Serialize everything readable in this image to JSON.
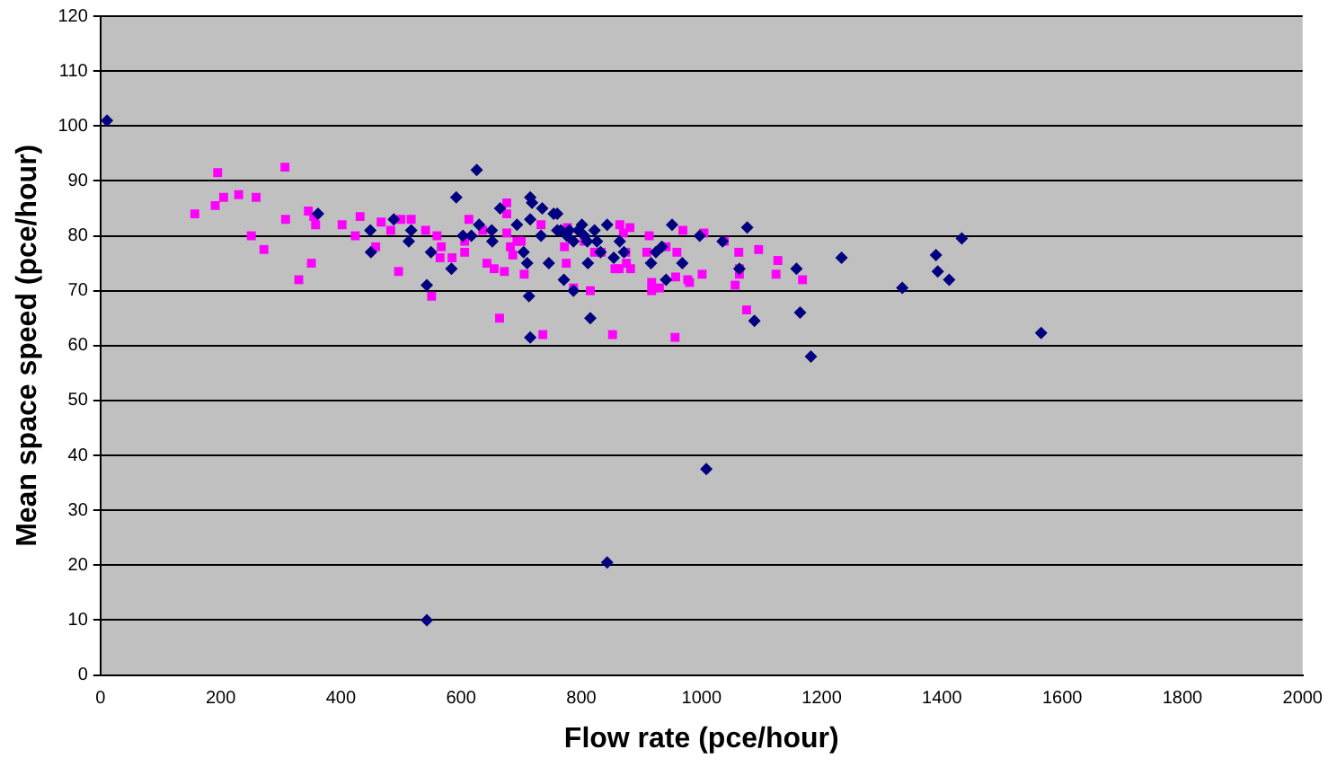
{
  "chart_data": {
    "type": "scatter",
    "xlabel": "Flow rate (pce/hour)",
    "ylabel": "Mean space speed (pce/hour)",
    "xlim": [
      0,
      2000
    ],
    "xticks": [
      0,
      200,
      400,
      600,
      800,
      1000,
      1200,
      1400,
      1600,
      1800,
      2000
    ],
    "ylim": [
      0,
      120
    ],
    "yticks": [
      0,
      10,
      20,
      30,
      40,
      50,
      60,
      70,
      80,
      90,
      100,
      110,
      120
    ],
    "grid": "y",
    "legend": false,
    "series": [
      {
        "color": "#000080",
        "marker": "diamond",
        "x": [
          11,
          362,
          449,
          450,
          488,
          513,
          517,
          543,
          550,
          584,
          592,
          603,
          617,
          626,
          630,
          651,
          652,
          665,
          693,
          704,
          710,
          713,
          715,
          715,
          718,
          715,
          733,
          735,
          746,
          754,
          760,
          760,
          766,
          771,
          776,
          780,
          787,
          787,
          795,
          801,
          805,
          810,
          811,
          815,
          822,
          826,
          832,
          843,
          843,
          854,
          864,
          871,
          916,
          924,
          934,
          941,
          951,
          968,
          997,
          1008,
          1035,
          1063,
          1076,
          1088,
          1158,
          1164,
          1182,
          1233,
          1334,
          1390,
          1393,
          1412,
          1433,
          1565,
          543
        ],
        "values": [
          101,
          84,
          81,
          77,
          83,
          79,
          81,
          71,
          77,
          74,
          87,
          80,
          80,
          92,
          82,
          81,
          79,
          85,
          82,
          77,
          75,
          69,
          83,
          87,
          86,
          61.5,
          80,
          85,
          75,
          84,
          84,
          81,
          81,
          72,
          80,
          81,
          79,
          70,
          81,
          82,
          80,
          79,
          75,
          65,
          81,
          79,
          77,
          82,
          20.5,
          76,
          79,
          77,
          75,
          77,
          78,
          72,
          82,
          75,
          80,
          37.5,
          79,
          74,
          81.5,
          64.5,
          74,
          66,
          58,
          76,
          70.5,
          76.5,
          73.5,
          72,
          79.5,
          62.3,
          10
        ]
      },
      {
        "color": "#ff00ff",
        "marker": "square",
        "x": [
          157,
          191,
          195,
          205,
          230,
          251,
          259,
          272,
          307,
          308,
          330,
          346,
          351,
          355,
          358,
          402,
          424,
          432,
          458,
          467,
          483,
          496,
          500,
          517,
          541,
          551,
          560,
          567,
          565,
          585,
          606,
          606,
          613,
          636,
          643,
          655,
          664,
          672,
          676,
          676,
          676,
          682,
          686,
          693,
          700,
          705,
          733,
          736,
          772,
          775,
          777,
          787,
          805,
          815,
          822,
          833,
          852,
          856,
          863,
          864,
          870,
          874,
          875,
          881,
          882,
          909,
          913,
          917,
          917,
          930,
          941,
          956,
          957,
          959,
          969,
          977,
          980,
          1001,
          1004,
          1038,
          1056,
          1062,
          1063,
          1063,
          1075,
          1095,
          1124,
          1127,
          1168
        ],
        "values": [
          84,
          85.5,
          91.5,
          87,
          87.5,
          80,
          87,
          77.5,
          92.5,
          83,
          72,
          84.5,
          75,
          83.5,
          82,
          82,
          80,
          83.5,
          78,
          82.5,
          81,
          73.5,
          83,
          83,
          81,
          69,
          80,
          78,
          76,
          76,
          77,
          79,
          83,
          81,
          75,
          74,
          65,
          73.5,
          86,
          84,
          80.5,
          78,
          76.5,
          79,
          79,
          73,
          82,
          62,
          78,
          75,
          81.5,
          70.5,
          79,
          70,
          77,
          77,
          62,
          74,
          74,
          82,
          80.5,
          77,
          75,
          81.5,
          74,
          77,
          80,
          71.5,
          70,
          70.5,
          78,
          61.5,
          72.5,
          77,
          81,
          72,
          71.5,
          73,
          80.5,
          79,
          71,
          77,
          74,
          73,
          66.5,
          77.5,
          73,
          75.5,
          72
        ]
      }
    ]
  }
}
